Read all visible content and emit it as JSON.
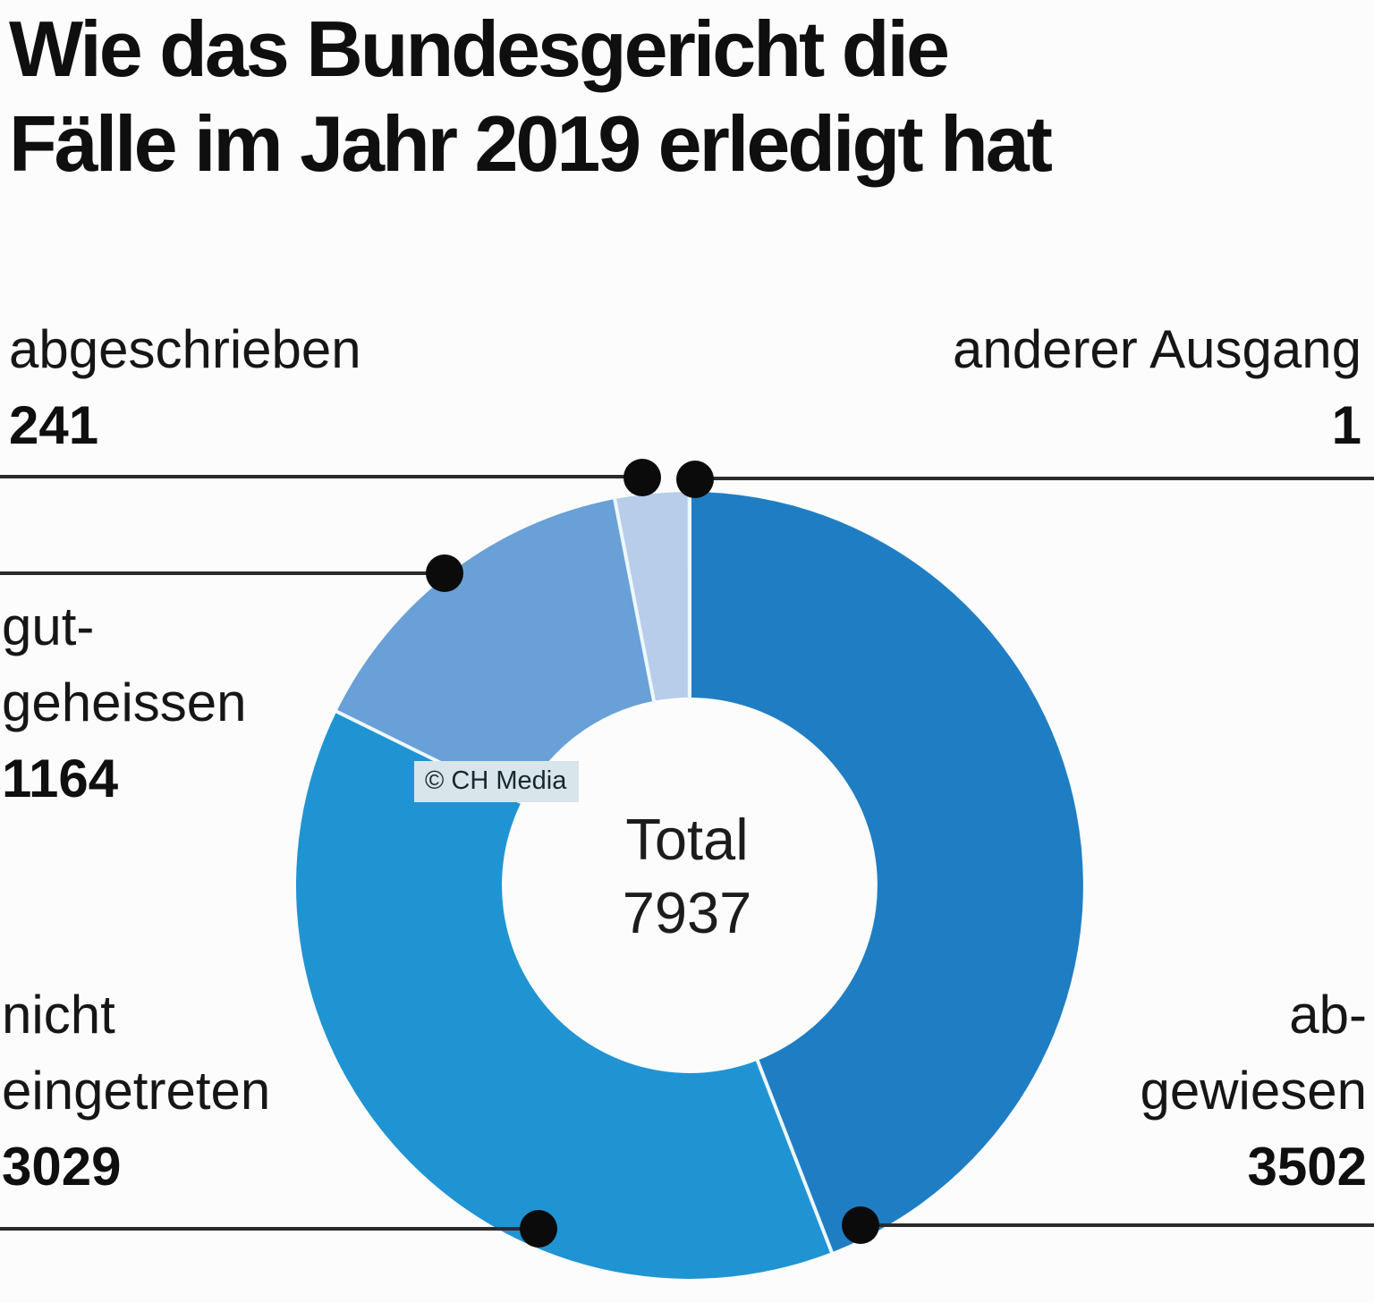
{
  "title": {
    "line1": "Wie das Bundesgericht die",
    "line2": "Fälle im Jahr 2019 erledigt hat"
  },
  "center": {
    "label": "Total",
    "value": "7937"
  },
  "watermark": "© CH Media",
  "colors": {
    "leader_line": "#2b2b2b",
    "dot": "#0b0b0b",
    "divider": "#eef7fc",
    "watermark_bg": "#d8e5eb",
    "background": "#fcfcfc",
    "text": "#111111"
  },
  "callouts": {
    "top_left": {
      "line1": "abgeschrieben",
      "value": "241"
    },
    "top_right": {
      "line1": "anderer Ausgang",
      "value": "1"
    },
    "left": {
      "line1": "gut-",
      "line2": "geheissen",
      "value": "1164"
    },
    "bottom_left": {
      "line1": "nicht",
      "line2": "eingetreten",
      "value": "3029"
    },
    "bottom_right": {
      "line1": "ab-",
      "line2": "gewiesen",
      "value": "3502"
    }
  },
  "chart_data": {
    "type": "pie",
    "subtype": "donut",
    "title": "Wie das Bundesgericht die Fälle im Jahr 2019 erledigt hat",
    "total": 7937,
    "center_text": [
      "Total",
      "7937"
    ],
    "start_angle_deg": 0,
    "direction": "clockwise",
    "legend_position": "callout-labels",
    "segments": [
      {
        "label": "abgewiesen",
        "value": 3502,
        "color": "#1f7ec3"
      },
      {
        "label": "nicht eingetreten",
        "value": 3029,
        "color": "#2094d3"
      },
      {
        "label": "gutgeheissen",
        "value": 1164,
        "color": "#68a0d7"
      },
      {
        "label": "abgeschrieben",
        "value": 241,
        "color": "#b7cde9"
      },
      {
        "label": "anderer Ausgang",
        "value": 1,
        "color": "#cfe0f2"
      }
    ]
  }
}
